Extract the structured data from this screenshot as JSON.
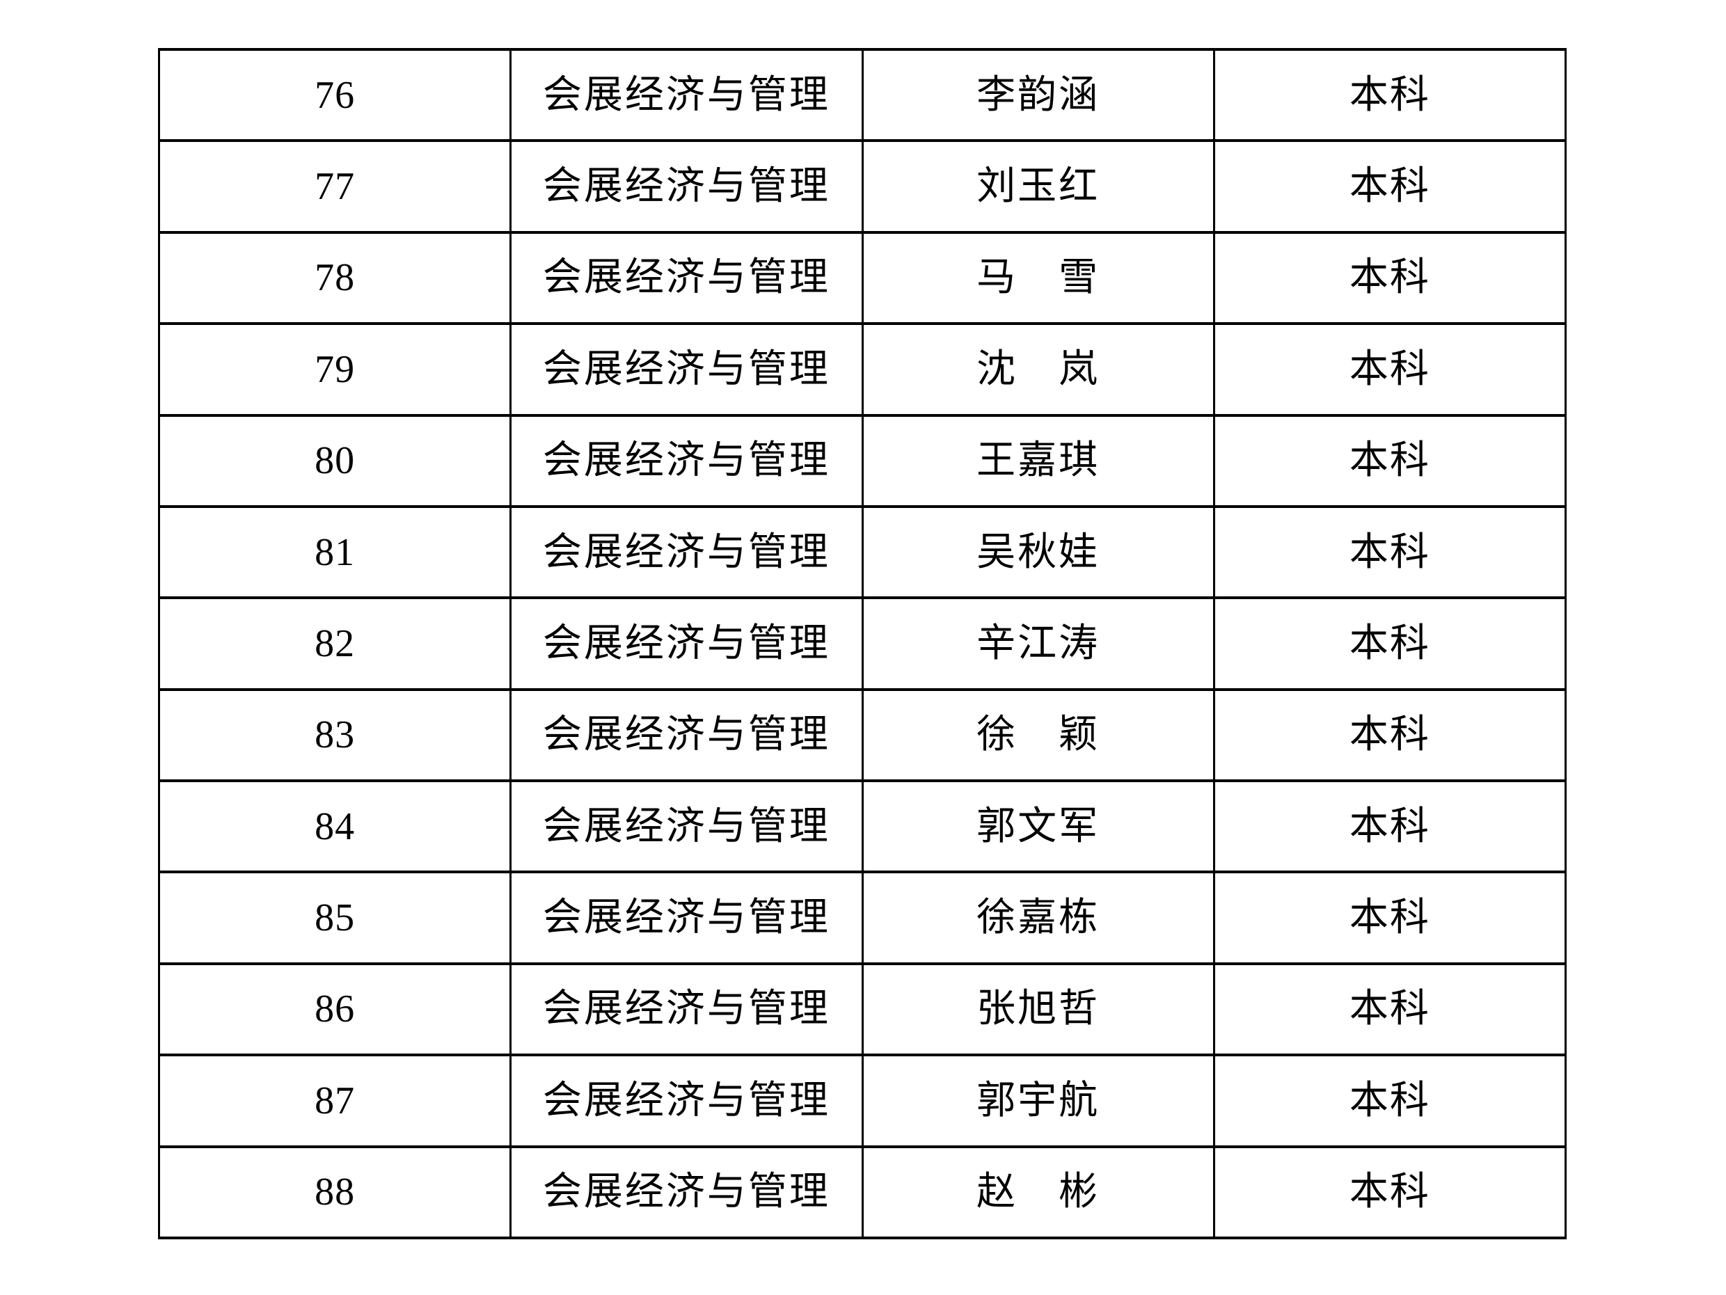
{
  "colors": {
    "background": "#ffffff",
    "border": "#000000",
    "text": "#000000"
  },
  "table": {
    "rows": [
      {
        "no": "76",
        "major": "会展经济与管理",
        "name": "李韵涵",
        "level": "本科"
      },
      {
        "no": "77",
        "major": "会展经济与管理",
        "name": "刘玉红",
        "level": "本科"
      },
      {
        "no": "78",
        "major": "会展经济与管理",
        "name": "马　雪",
        "level": "本科"
      },
      {
        "no": "79",
        "major": "会展经济与管理",
        "name": "沈　岚",
        "level": "本科"
      },
      {
        "no": "80",
        "major": "会展经济与管理",
        "name": "王嘉琪",
        "level": "本科"
      },
      {
        "no": "81",
        "major": "会展经济与管理",
        "name": "吴秋娃",
        "level": "本科"
      },
      {
        "no": "82",
        "major": "会展经济与管理",
        "name": "辛江涛",
        "level": "本科"
      },
      {
        "no": "83",
        "major": "会展经济与管理",
        "name": "徐　颖",
        "level": "本科"
      },
      {
        "no": "84",
        "major": "会展经济与管理",
        "name": "郭文军",
        "level": "本科"
      },
      {
        "no": "85",
        "major": "会展经济与管理",
        "name": "徐嘉栋",
        "level": "本科"
      },
      {
        "no": "86",
        "major": "会展经济与管理",
        "name": "张旭哲",
        "level": "本科"
      },
      {
        "no": "87",
        "major": "会展经济与管理",
        "name": "郭宇航",
        "level": "本科"
      },
      {
        "no": "88",
        "major": "会展经济与管理",
        "name": "赵　彬",
        "level": "本科"
      }
    ]
  }
}
